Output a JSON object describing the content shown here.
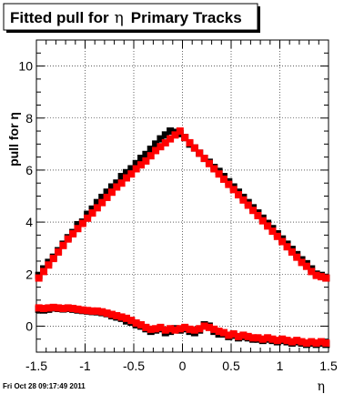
{
  "chart_data": {
    "type": "scatter",
    "title_prefix": "Fitted pull for",
    "title_symbol": "η",
    "title_suffix": "Primary Tracks",
    "ylabel": "pull for η",
    "xlabel": "η",
    "xlim": [
      -1.5,
      1.5
    ],
    "ylim": [
      -1.0,
      11.0
    ],
    "x_ticks": [
      -1.5,
      -1,
      -0.5,
      0,
      0.5,
      1,
      1.5
    ],
    "x_tick_labels": [
      "-1.5",
      "-1",
      "-0.5",
      "0",
      "0.5",
      "1",
      "1.5"
    ],
    "y_ticks": [
      0,
      2,
      4,
      6,
      8,
      10
    ],
    "y_tick_labels": [
      "0",
      "2",
      "4",
      "6",
      "8",
      "10"
    ],
    "grid": true,
    "legend": "none",
    "marker_colors": [
      "#000000",
      "#ff0000"
    ],
    "series_upper": {
      "x": [
        -1.475,
        -1.425,
        -1.375,
        -1.325,
        -1.275,
        -1.225,
        -1.175,
        -1.125,
        -1.075,
        -1.025,
        -0.975,
        -0.925,
        -0.875,
        -0.825,
        -0.775,
        -0.725,
        -0.675,
        -0.625,
        -0.575,
        -0.525,
        -0.475,
        -0.425,
        -0.375,
        -0.325,
        -0.275,
        -0.225,
        -0.175,
        -0.125,
        -0.075,
        -0.025,
        0.025,
        0.075,
        0.125,
        0.175,
        0.225,
        0.275,
        0.325,
        0.375,
        0.425,
        0.475,
        0.525,
        0.575,
        0.625,
        0.675,
        0.725,
        0.775,
        0.825,
        0.875,
        0.925,
        0.975,
        1.025,
        1.075,
        1.125,
        1.175,
        1.225,
        1.275,
        1.325,
        1.375,
        1.425,
        1.475
      ],
      "black": [
        1.95,
        2.2,
        2.45,
        2.65,
        2.9,
        3.15,
        3.4,
        3.6,
        3.9,
        4.0,
        4.3,
        4.5,
        4.75,
        4.95,
        5.15,
        5.35,
        5.5,
        5.75,
        5.9,
        6.05,
        6.25,
        6.45,
        6.6,
        6.8,
        7.0,
        7.2,
        7.35,
        7.5,
        7.45,
        7.4,
        7.25,
        7.0,
        6.85,
        6.65,
        6.45,
        6.3,
        6.1,
        5.95,
        5.75,
        5.55,
        5.35,
        5.15,
        4.95,
        4.75,
        4.55,
        4.35,
        4.15,
        3.95,
        3.75,
        3.55,
        3.35,
        3.15,
        2.95,
        2.75,
        2.55,
        2.4,
        2.2,
        2.0,
        1.95,
        1.85
      ],
      "red": [
        1.85,
        2.1,
        2.35,
        2.6,
        2.85,
        3.1,
        3.35,
        3.55,
        3.75,
        3.95,
        4.15,
        4.35,
        4.55,
        4.75,
        4.95,
        5.15,
        5.35,
        5.5,
        5.7,
        5.85,
        6.05,
        6.2,
        6.35,
        6.55,
        6.75,
        6.9,
        7.05,
        7.2,
        7.35,
        7.5,
        7.25,
        7.05,
        6.85,
        6.65,
        6.45,
        6.25,
        6.05,
        5.85,
        5.65,
        5.45,
        5.25,
        5.05,
        4.85,
        4.65,
        4.45,
        4.25,
        4.05,
        3.85,
        3.65,
        3.45,
        3.25,
        3.05,
        2.85,
        2.65,
        2.45,
        2.3,
        2.1,
        1.95,
        1.9,
        1.85
      ]
    },
    "series_lower": {
      "x": [
        -1.475,
        -1.425,
        -1.375,
        -1.325,
        -1.275,
        -1.225,
        -1.175,
        -1.125,
        -1.075,
        -1.025,
        -0.975,
        -0.925,
        -0.875,
        -0.825,
        -0.775,
        -0.725,
        -0.675,
        -0.625,
        -0.575,
        -0.525,
        -0.475,
        -0.425,
        -0.375,
        -0.325,
        -0.275,
        -0.225,
        -0.175,
        -0.125,
        -0.075,
        -0.025,
        0.025,
        0.075,
        0.125,
        0.175,
        0.225,
        0.275,
        0.325,
        0.375,
        0.425,
        0.475,
        0.525,
        0.575,
        0.625,
        0.675,
        0.725,
        0.775,
        0.825,
        0.875,
        0.925,
        0.975,
        1.025,
        1.075,
        1.125,
        1.175,
        1.225,
        1.275,
        1.325,
        1.375,
        1.425,
        1.475
      ],
      "black": [
        0.65,
        0.62,
        0.65,
        0.7,
        0.68,
        0.66,
        0.68,
        0.65,
        0.62,
        0.6,
        0.58,
        0.56,
        0.55,
        0.52,
        0.48,
        0.4,
        0.35,
        0.3,
        0.2,
        0.15,
        0.05,
        0.0,
        -0.1,
        -0.2,
        -0.15,
        -0.1,
        -0.25,
        -0.2,
        -0.1,
        -0.15,
        -0.1,
        -0.2,
        -0.25,
        -0.15,
        0.05,
        0.0,
        -0.2,
        -0.3,
        -0.3,
        -0.4,
        -0.35,
        -0.45,
        -0.4,
        -0.45,
        -0.5,
        -0.5,
        -0.55,
        -0.5,
        -0.55,
        -0.6,
        -0.55,
        -0.6,
        -0.65,
        -0.6,
        -0.65,
        -0.7,
        -0.65,
        -0.7,
        -0.65,
        -0.7
      ],
      "red": [
        0.7,
        0.68,
        0.7,
        0.72,
        0.7,
        0.68,
        0.7,
        0.68,
        0.65,
        0.62,
        0.6,
        0.58,
        0.58,
        0.55,
        0.5,
        0.45,
        0.4,
        0.35,
        0.3,
        0.22,
        0.12,
        0.05,
        -0.05,
        -0.12,
        -0.1,
        -0.05,
        -0.15,
        -0.1,
        -0.15,
        -0.1,
        -0.05,
        -0.12,
        -0.15,
        -0.1,
        0.0,
        -0.05,
        -0.12,
        -0.2,
        -0.25,
        -0.35,
        -0.3,
        -0.4,
        -0.35,
        -0.4,
        -0.45,
        -0.45,
        -0.5,
        -0.45,
        -0.5,
        -0.55,
        -0.5,
        -0.55,
        -0.6,
        -0.55,
        -0.6,
        -0.65,
        -0.6,
        -0.65,
        -0.6,
        -0.65
      ]
    }
  },
  "timestamp": "Fri Oct 28 09:17:49 2011"
}
